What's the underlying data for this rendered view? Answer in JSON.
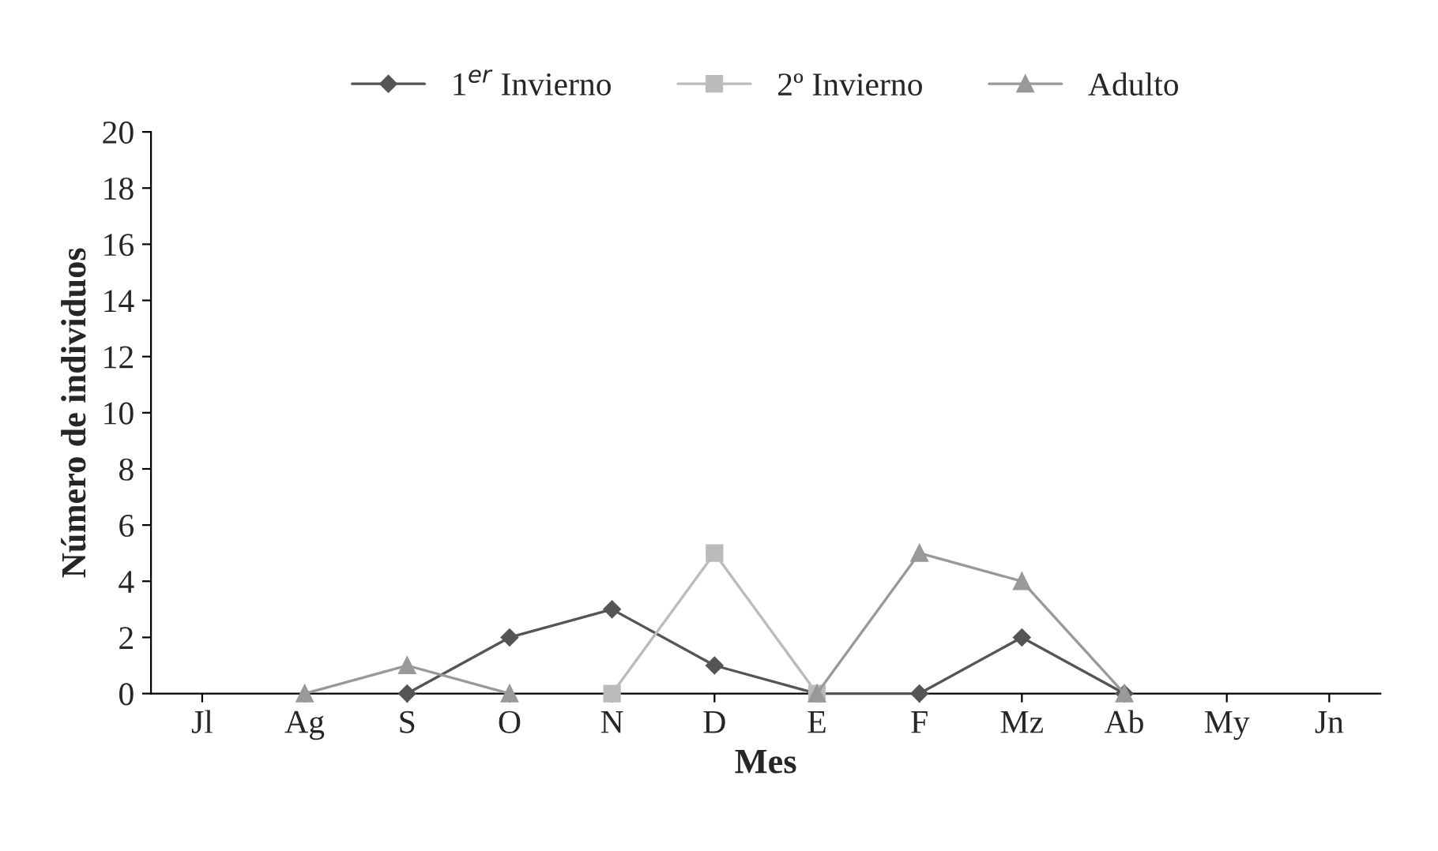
{
  "chart_data": {
    "type": "line",
    "xlabel": "Mes",
    "ylabel": "Número de individuos",
    "categories": [
      "Jl",
      "Ag",
      "S",
      "O",
      "N",
      "D",
      "E",
      "F",
      "Mz",
      "Ab",
      "My",
      "Jn"
    ],
    "series": [
      {
        "name": "1$^{er}$ Invierno",
        "color": "#555555",
        "marker": "diamond",
        "values": [
          null,
          null,
          0,
          2,
          3,
          1,
          0,
          0,
          2,
          0,
          null,
          null
        ]
      },
      {
        "name": "2º Invierno",
        "color": "#bbbbbb",
        "marker": "square",
        "values": [
          null,
          null,
          null,
          null,
          0,
          5,
          0,
          null,
          null,
          null,
          null,
          null
        ]
      },
      {
        "name": "Adulto",
        "color": "#999999",
        "marker": "triangle",
        "values": [
          null,
          0,
          1,
          0,
          null,
          null,
          0,
          5,
          4,
          0,
          null,
          null
        ]
      }
    ],
    "ylim": [
      0,
      20
    ],
    "yticks": [
      0,
      2,
      4,
      6,
      8,
      10,
      12,
      14,
      16,
      18,
      20
    ],
    "grid": false,
    "legend": "top"
  }
}
